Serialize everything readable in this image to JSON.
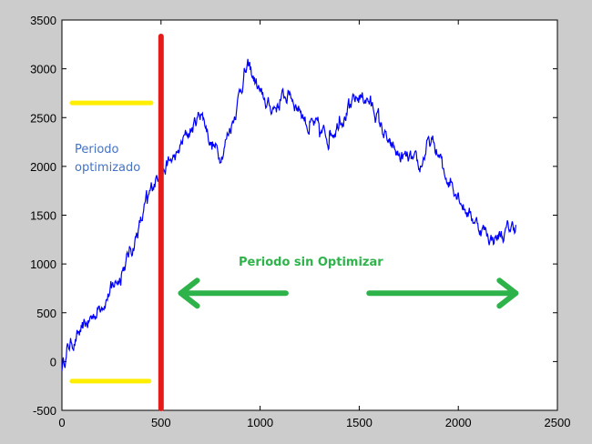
{
  "chart_data": {
    "type": "line",
    "title": "",
    "xlabel": "",
    "ylabel": "",
    "xlim": [
      0,
      2500
    ],
    "ylim": [
      -500,
      3500
    ],
    "xticks": [
      "0",
      "500",
      "1000",
      "1500",
      "2000",
      "2500"
    ],
    "yticks": [
      "-500",
      "0",
      "500",
      "1000",
      "1500",
      "2000",
      "2500",
      "3000",
      "3500"
    ],
    "grid": false,
    "series": [
      {
        "color": "#0000ff",
        "x": [
          0,
          25,
          50,
          100,
          150,
          200,
          250,
          300,
          350,
          400,
          430,
          460,
          490,
          500,
          540,
          580,
          620,
          660,
          700,
          730,
          760,
          800,
          840,
          880,
          920,
          950,
          980,
          1010,
          1050,
          1100,
          1150,
          1200,
          1250,
          1300,
          1350,
          1400,
          1450,
          1500,
          1530,
          1560,
          1600,
          1650,
          1700,
          1750,
          1800,
          1850,
          1880,
          1920,
          1960,
          2000,
          2040,
          2080,
          2120,
          2150,
          2180,
          2220,
          2260,
          2290
        ],
        "y": [
          -50,
          100,
          200,
          300,
          450,
          600,
          750,
          900,
          1150,
          1450,
          1650,
          1800,
          1950,
          1900,
          2050,
          2100,
          2300,
          2400,
          2550,
          2400,
          2200,
          2100,
          2350,
          2600,
          2950,
          3000,
          2850,
          2700,
          2600,
          2650,
          2750,
          2600,
          2400,
          2350,
          2300,
          2500,
          2600,
          2700,
          2700,
          2650,
          2500,
          2200,
          2100,
          2050,
          1950,
          2250,
          2200,
          2000,
          1850,
          1750,
          1550,
          1450,
          1350,
          1300,
          1250,
          1300,
          1350,
          1400
        ]
      }
    ],
    "markers": {
      "vertical_line": {
        "x": 500,
        "color": "#e21b1b"
      },
      "level_lines": [
        {
          "y": 2650,
          "x_from": 50,
          "x_to": 450,
          "color": "#ffee00"
        },
        {
          "y": -200,
          "x_from": 50,
          "x_to": 440,
          "color": "#ffee00"
        }
      ],
      "arrows": [
        {
          "direction": "left",
          "x_from": 1130,
          "x_to": 600,
          "y": 700,
          "color": "#2eb34a"
        },
        {
          "direction": "right",
          "x_from": 1550,
          "x_to": 2290,
          "y": 700,
          "color": "#2eb34a"
        }
      ]
    },
    "annotations": [
      {
        "id": "periodo-optimizado",
        "lines": [
          "Periodo",
          "optimizado"
        ],
        "color": "#4472c4"
      },
      {
        "id": "periodo-sin-optimizar",
        "lines": [
          "Periodo sin Optimizar"
        ],
        "color": "#2eb34a"
      }
    ]
  }
}
